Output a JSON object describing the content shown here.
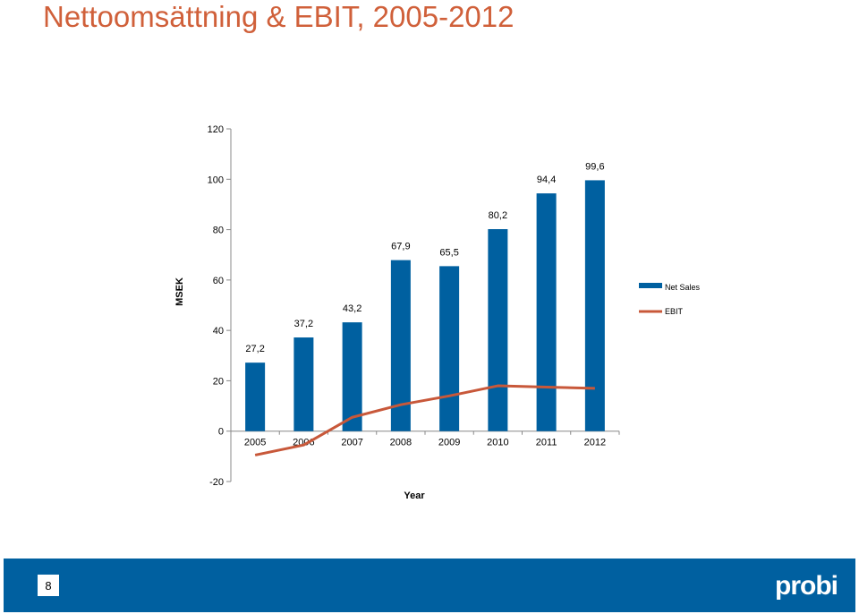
{
  "slide": {
    "title": "Nettoomsättning & EBIT, 2005-2012",
    "page_number": "8",
    "logo_text": "probi"
  },
  "colors": {
    "title": "#d0603a",
    "bar": "#0060a0",
    "line": "#c8583a",
    "footer": "#0060a0"
  },
  "chart_data": {
    "type": "bar",
    "categories": [
      "2005",
      "2006",
      "2007",
      "2008",
      "2009",
      "2010",
      "2011",
      "2012"
    ],
    "series": [
      {
        "name": "Net Sales",
        "type": "bar",
        "values": [
          27.2,
          37.2,
          43.2,
          67.9,
          65.5,
          80.2,
          94.4,
          99.6
        ],
        "labels": [
          "27,2",
          "37,2",
          "43,2",
          "67,9",
          "65,5",
          "80,2",
          "94,4",
          "99,6"
        ]
      },
      {
        "name": "EBIT",
        "type": "line",
        "values": [
          -9.5,
          -5.5,
          5.5,
          10.5,
          14,
          18,
          17.5,
          17
        ]
      }
    ],
    "xlabel": "Year",
    "ylabel": "MSEK",
    "ylim": [
      -20,
      120
    ],
    "yticks": [
      -20,
      0,
      20,
      40,
      60,
      80,
      100,
      120
    ],
    "legend_position": "right",
    "grid": false
  }
}
